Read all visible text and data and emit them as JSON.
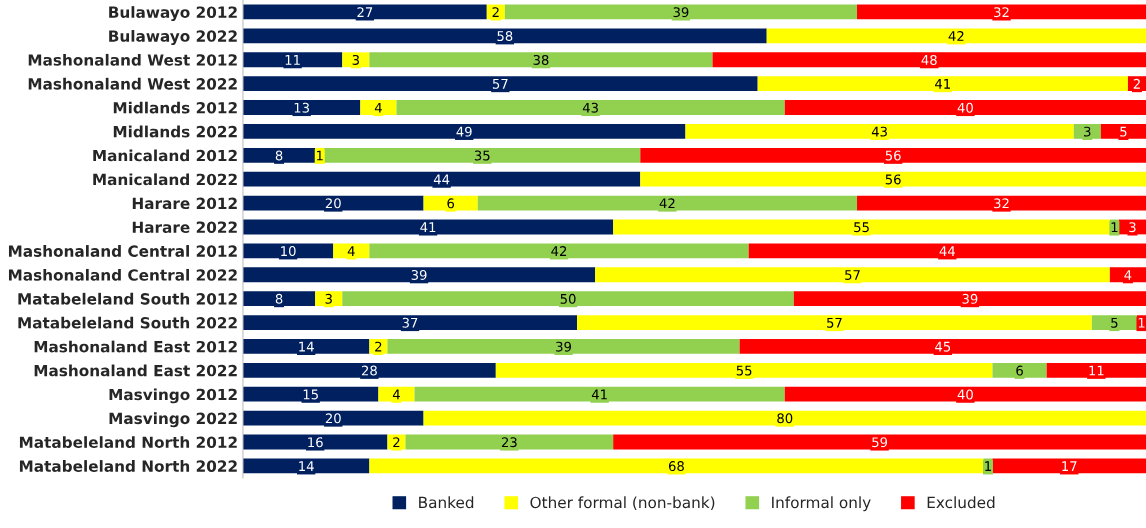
{
  "chart_data": {
    "type": "bar",
    "orientation": "horizontal",
    "stacked": true,
    "data_labels": true,
    "legend": "bottom",
    "grid": false,
    "categories": [
      "Bulawayo 2012",
      "Bulawayo 2022",
      "Mashonaland West 2012",
      "Mashonaland West 2022",
      "Midlands 2012",
      "Midlands 2022",
      "Manicaland 2012",
      "Manicaland 2022",
      "Harare 2012",
      "Harare 2022",
      "Mashonaland Central 2012",
      "Mashonaland Central 2022",
      "Matabeleland South 2012",
      "Matabeleland South 2022",
      "Mashonaland East 2012",
      "Mashonaland East 2022",
      "Masvingo 2012",
      "Masvingo 2022",
      "Matabeleland North 2012",
      "Matabeleland North 2022"
    ],
    "series": [
      {
        "name": "Banked",
        "color": "#002060",
        "values": [
          27,
          58,
          11,
          57,
          13,
          49,
          8,
          44,
          20,
          41,
          10,
          39,
          8,
          37,
          14,
          28,
          15,
          20,
          16,
          14
        ]
      },
      {
        "name": "Other formal (non-bank)",
        "color": "#ffff00",
        "values": [
          2,
          42,
          3,
          41,
          4,
          43,
          1,
          56,
          6,
          55,
          4,
          57,
          3,
          57,
          2,
          55,
          4,
          80,
          2,
          68
        ]
      },
      {
        "name": "Informal only",
        "color": "#92d050",
        "values": [
          39,
          null,
          38,
          null,
          43,
          3,
          35,
          null,
          42,
          1,
          42,
          null,
          50,
          5,
          39,
          6,
          41,
          null,
          23,
          1
        ]
      },
      {
        "name": "Excluded",
        "color": "#ff0000",
        "values": [
          32,
          null,
          48,
          2,
          40,
          5,
          56,
          null,
          32,
          3,
          44,
          4,
          39,
          1,
          45,
          11,
          40,
          null,
          59,
          17
        ]
      }
    ]
  }
}
